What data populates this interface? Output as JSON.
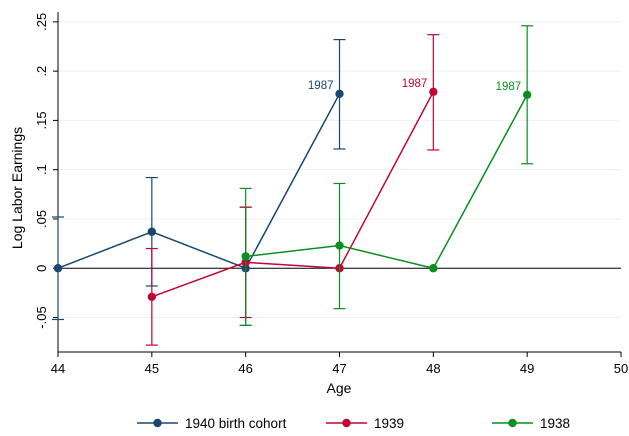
{
  "chart_data": {
    "type": "line",
    "xlabel": "Age",
    "ylabel": "Log Labor Earnings",
    "xlim": [
      44,
      50
    ],
    "ylim": [
      -0.085,
      0.26
    ],
    "x_ticks": [
      44,
      45,
      46,
      47,
      48,
      49,
      50
    ],
    "x_tick_labels": [
      "44",
      "45",
      "46",
      "47",
      "48",
      "49",
      "50"
    ],
    "y_ticks": [
      -0.05,
      0,
      0.05,
      0.1,
      0.15,
      0.2,
      0.25
    ],
    "y_tick_labels": [
      "-.05",
      "0",
      ".05",
      ".1",
      ".15",
      ".2",
      ".25"
    ],
    "grid": "horizontal",
    "reference_line": 0,
    "legend_position": "bottom",
    "series": [
      {
        "name": "1940 birth cohort",
        "color": "#1a476f",
        "points": [
          {
            "x": 44,
            "y": 0,
            "lo": -0.052,
            "hi": 0.052
          },
          {
            "x": 45,
            "y": 0.037,
            "lo": -0.018,
            "hi": 0.092
          },
          {
            "x": 46,
            "y": 0,
            "lo": -0.058,
            "hi": 0.062
          },
          {
            "x": 47,
            "y": 0.177,
            "lo": 0.121,
            "hi": 0.232
          }
        ],
        "annotation": {
          "x": 47,
          "y": 0.177,
          "text": "1987"
        }
      },
      {
        "name": "1939",
        "color": "#c10534",
        "points": [
          {
            "x": 45,
            "y": -0.029,
            "lo": -0.078,
            "hi": 0.02
          },
          {
            "x": 46,
            "y": 0.006,
            "lo": -0.05,
            "hi": 0.062
          },
          {
            "x": 47,
            "y": 0,
            "lo": null,
            "hi": null
          },
          {
            "x": 48,
            "y": 0.179,
            "lo": 0.12,
            "hi": 0.237
          }
        ],
        "annotation": {
          "x": 48,
          "y": 0.179,
          "text": "1987"
        }
      },
      {
        "name": "1938",
        "color": "#098f1f",
        "points": [
          {
            "x": 46,
            "y": 0.012,
            "lo": -0.058,
            "hi": 0.081
          },
          {
            "x": 47,
            "y": 0.023,
            "lo": -0.041,
            "hi": 0.086
          },
          {
            "x": 48,
            "y": 0,
            "lo": null,
            "hi": null
          },
          {
            "x": 49,
            "y": 0.176,
            "lo": 0.106,
            "hi": 0.246
          }
        ],
        "annotation": {
          "x": 49,
          "y": 0.176,
          "text": "1987"
        }
      }
    ]
  }
}
